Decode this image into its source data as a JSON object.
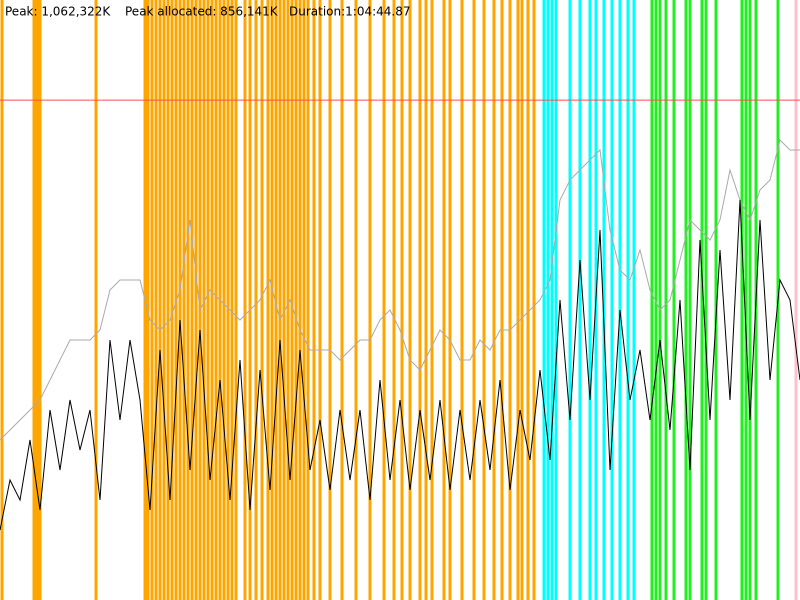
{
  "header": {
    "peak": "Peak: 1,062,322K",
    "peak_allocated": "Peak allocated: 856,141K",
    "duration": "Duration:1:04:44.87"
  },
  "chart_data": {
    "type": "line",
    "xlim": [
      0,
      80
    ],
    "ylim": [
      0,
      1275000
    ],
    "x": [
      0,
      1,
      2,
      3,
      4,
      5,
      6,
      7,
      8,
      9,
      10,
      11,
      12,
      13,
      14,
      15,
      16,
      17,
      18,
      19,
      20,
      21,
      22,
      23,
      24,
      25,
      26,
      27,
      28,
      29,
      30,
      31,
      32,
      33,
      34,
      35,
      36,
      37,
      38,
      39,
      40,
      41,
      42,
      43,
      44,
      45,
      46,
      47,
      48,
      49,
      50,
      51,
      52,
      53,
      54,
      55,
      56,
      57,
      58,
      59,
      60,
      61,
      62,
      63,
      64,
      65,
      66,
      67,
      68,
      69,
      70,
      71,
      72,
      73,
      74,
      75,
      76,
      77,
      78,
      79,
      80
    ],
    "peak_line": {
      "value": 1062322,
      "color": "#f05050"
    },
    "series": [
      {
        "color": "#aaaaaa",
        "values": [
          340000,
          361250,
          382500,
          403750,
          425000,
          467500,
          510000,
          552500,
          552500,
          552500,
          573750,
          658750,
          680000,
          680000,
          680000,
          595000,
          573750,
          595000,
          658750,
          807500,
          616250,
          658750,
          637500,
          616250,
          595000,
          616250,
          637500,
          680000,
          595000,
          637500,
          573750,
          531250,
          531250,
          531250,
          510000,
          531250,
          552500,
          552500,
          595000,
          616250,
          573750,
          510000,
          488750,
          531250,
          573750,
          552500,
          510000,
          510000,
          552500,
          531250,
          573750,
          573750,
          595000,
          616250,
          637500,
          680000,
          850000,
          892500,
          913750,
          935000,
          956250,
          786250,
          701250,
          680000,
          743750,
          658750,
          616250,
          637500,
          722500,
          807500,
          786250,
          765000,
          807500,
          913750,
          850000,
          807500,
          871250,
          892500,
          977500,
          956250,
          956250
        ]
      },
      {
        "color": "#000000",
        "values": [
          148750,
          255000,
          212500,
          340000,
          191250,
          403750,
          276250,
          425000,
          318750,
          403750,
          212500,
          552500,
          382500,
          552500,
          425000,
          191250,
          531250,
          212500,
          595000,
          276250,
          573750,
          255000,
          467500,
          212500,
          510000,
          191250,
          488750,
          233750,
          552500,
          255000,
          531250,
          276250,
          382500,
          233750,
          403750,
          255000,
          403750,
          212500,
          467500,
          255000,
          425000,
          233750,
          403750,
          255000,
          425000,
          233750,
          403750,
          255000,
          425000,
          276250,
          467500,
          233750,
          403750,
          297500,
          488750,
          297500,
          637500,
          382500,
          722500,
          425000,
          786250,
          276250,
          616250,
          425000,
          531250,
          382500,
          552500,
          361250,
          637500,
          276250,
          765000,
          382500,
          743750,
          425000,
          850000,
          382500,
          807500,
          467500,
          680000,
          637500,
          467500
        ]
      }
    ],
    "events": [
      {
        "color": "#ffa500",
        "x": [
          0.2,
          3.4,
          3.6,
          3.8,
          4.0,
          9.6,
          14.5,
          14.8,
          15.2,
          15.6,
          16.0,
          16.4,
          16.8,
          17.2,
          17.6,
          18.0,
          18.4,
          18.8,
          19.2,
          19.6,
          20.0,
          20.4,
          20.8,
          21.2,
          21.6,
          22.0,
          22.4,
          22.8,
          23.2,
          23.6,
          24.5,
          25.0,
          25.6,
          26.2,
          26.8,
          27.2,
          27.6,
          28.0,
          28.4,
          28.8,
          29.2,
          29.6,
          30.0,
          30.4,
          30.8,
          31.4,
          32.0,
          33.0,
          34.2,
          35.6,
          37.0,
          38.4,
          39.4,
          40.2,
          41.0,
          42.0,
          42.6,
          43.2,
          44.4,
          45.0,
          46.2,
          47.4,
          48.4,
          49.4,
          50.2,
          51.0,
          51.8,
          52.2,
          52.8,
          53.4
        ]
      },
      {
        "color": "#00ffff",
        "x": [
          54.4,
          54.8,
          55.2,
          55.6,
          57.0,
          58.0,
          59.0,
          59.6,
          60.4,
          61.2,
          62.0,
          62.8,
          63.4
        ]
      },
      {
        "color": "#22ee22",
        "x": [
          65.2,
          65.6,
          66.0,
          66.6,
          67.4,
          68.6,
          69.0,
          70.2,
          70.6,
          71.6,
          74.2,
          74.6,
          75.0,
          75.6,
          77.8
        ]
      },
      {
        "color": "#ffc0cb",
        "x": [
          79.6
        ]
      }
    ]
  }
}
